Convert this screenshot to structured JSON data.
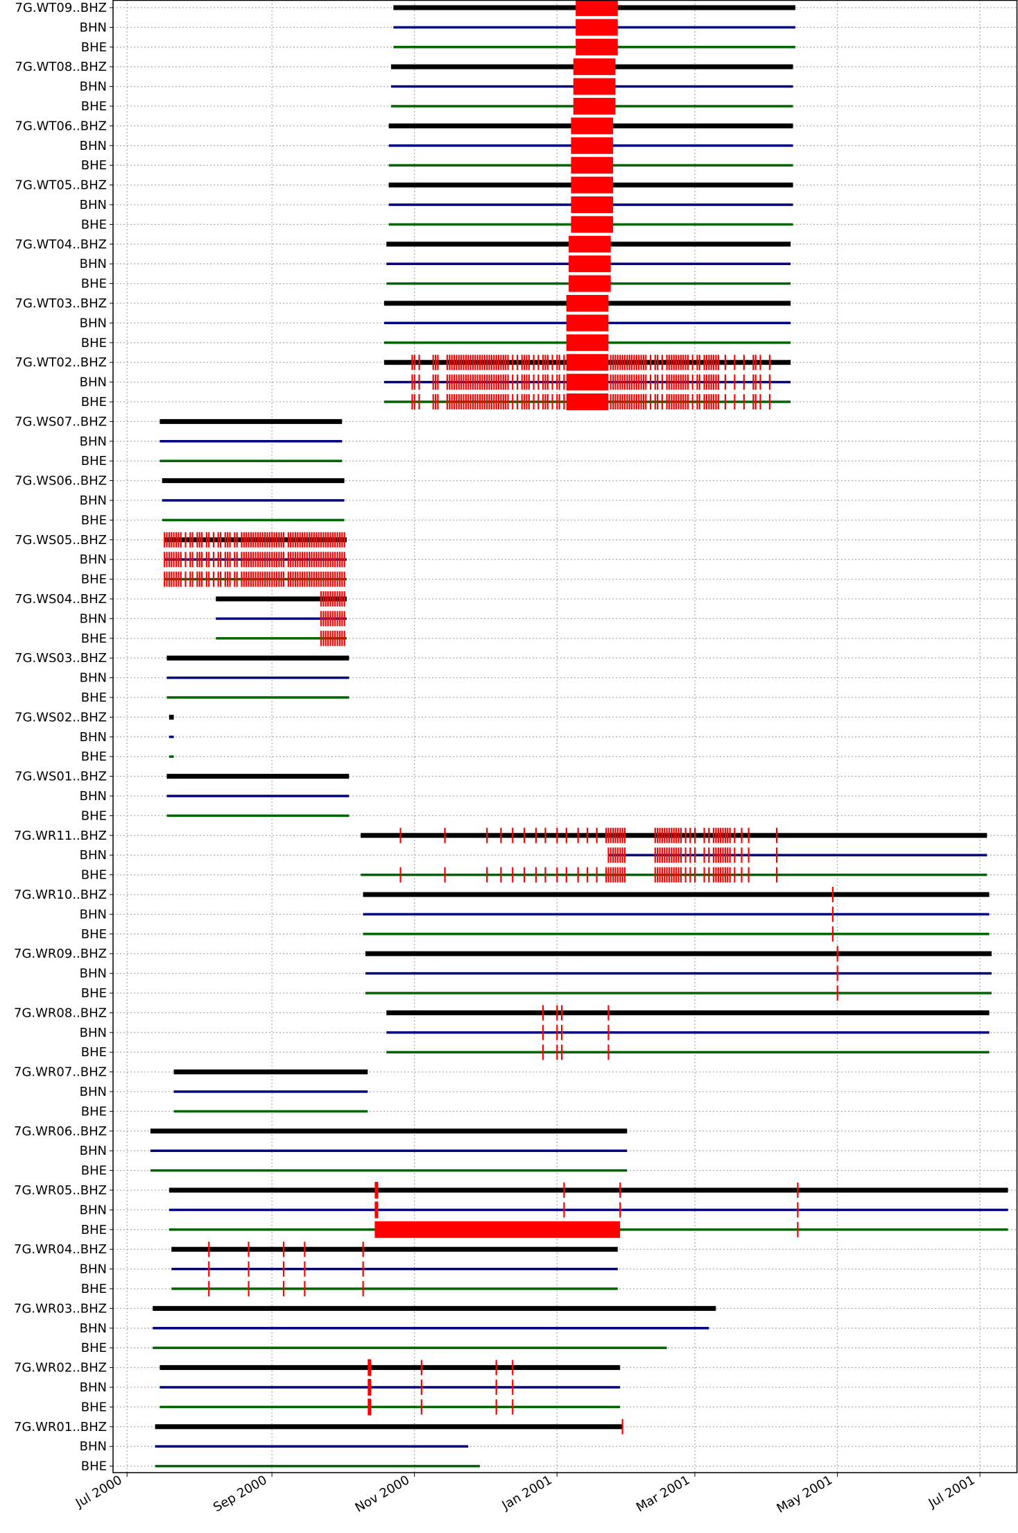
{
  "chart_data": {
    "type": "timeline",
    "title": "",
    "xlabel": "",
    "ylabel": "",
    "grid": true,
    "x_axis": {
      "range": [
        "2000-06-25",
        "2001-07-17"
      ],
      "ticks": [
        {
          "date": "2000-07-01",
          "label": "Jul 2000"
        },
        {
          "date": "2000-09-01",
          "label": "Sep 2000"
        },
        {
          "date": "2000-11-01",
          "label": "Nov 2000"
        },
        {
          "date": "2001-01-01",
          "label": "Jan 2001"
        },
        {
          "date": "2001-03-01",
          "label": "Mar 2001"
        },
        {
          "date": "2001-05-01",
          "label": "May 2001"
        },
        {
          "date": "2001-07-01",
          "label": "Jul 2001"
        }
      ]
    },
    "channel_colors": {
      "BHZ": "#000000",
      "BHN": "#00007f",
      "BHE": "#006400"
    },
    "gap_color": "#ff0000",
    "stations": [
      {
        "label": "7G.WT09..BHZ",
        "channels": [
          "BHZ",
          "BHN",
          "BHE"
        ],
        "start": "2000-10-23",
        "end": "2001-04-13",
        "gaps": [
          {
            "s": "2001-01-09",
            "e": "2001-01-27"
          }
        ]
      },
      {
        "label": "7G.WT08..BHZ",
        "channels": [
          "BHZ",
          "BHN",
          "BHE"
        ],
        "start": "2000-10-22",
        "end": "2001-04-12",
        "gaps": [
          {
            "s": "2001-01-08",
            "e": "2001-01-26"
          }
        ]
      },
      {
        "label": "7G.WT06..BHZ",
        "channels": [
          "BHZ",
          "BHN",
          "BHE"
        ],
        "start": "2000-10-21",
        "end": "2001-04-12",
        "gaps": [
          {
            "s": "2001-01-07",
            "e": "2001-01-25"
          }
        ]
      },
      {
        "label": "7G.WT05..BHZ",
        "channels": [
          "BHZ",
          "BHN",
          "BHE"
        ],
        "start": "2000-10-21",
        "end": "2001-04-12",
        "gaps": [
          {
            "s": "2001-01-07",
            "e": "2001-01-25"
          }
        ]
      },
      {
        "label": "7G.WT04..BHZ",
        "channels": [
          "BHZ",
          "BHN",
          "BHE"
        ],
        "start": "2000-10-20",
        "end": "2001-04-11",
        "gaps": [
          {
            "s": "2001-01-06",
            "e": "2001-01-24"
          }
        ]
      },
      {
        "label": "7G.WT03..BHZ",
        "channels": [
          "BHZ",
          "BHN",
          "BHE"
        ],
        "start": "2000-10-19",
        "end": "2001-04-11",
        "gaps": [
          {
            "s": "2001-01-05",
            "e": "2001-01-23"
          }
        ]
      },
      {
        "label": "7G.WT02..BHZ",
        "channels": [
          "BHZ",
          "BHN",
          "BHE"
        ],
        "start": "2000-10-19",
        "end": "2001-04-11",
        "gaps": [
          {
            "s": "2001-01-05",
            "e": "2001-01-23"
          }
        ],
        "ticks": [
          "2000-10-31",
          "2000-11-01",
          "2000-11-03",
          "2000-11-09",
          "2000-11-10",
          "2000-11-11",
          "2000-11-15",
          "2000-11-16",
          "2000-11-17",
          "2000-11-18",
          "2000-11-19",
          "2000-11-20",
          "2000-11-21",
          "2000-11-22",
          "2000-11-23",
          "2000-11-24",
          "2000-11-25",
          "2000-11-26",
          "2000-11-27",
          "2000-11-28",
          "2000-11-29",
          "2000-11-30",
          "2000-12-01",
          "2000-12-02",
          "2000-12-03",
          "2000-12-04",
          "2000-12-05",
          "2000-12-06",
          "2000-12-07",
          "2000-12-08",
          "2000-12-09",
          "2000-12-10",
          "2000-12-11",
          "2000-12-13",
          "2000-12-15",
          "2000-12-17",
          "2000-12-18",
          "2000-12-19",
          "2000-12-20",
          "2000-12-22",
          "2000-12-24",
          "2000-12-26",
          "2000-12-27",
          "2000-12-28",
          "2000-12-30",
          "2001-01-01",
          "2001-01-02",
          "2001-01-04",
          "2001-01-24",
          "2001-01-25",
          "2001-01-26",
          "2001-01-27",
          "2001-01-28",
          "2001-01-29",
          "2001-01-30",
          "2001-01-31",
          "2001-02-01",
          "2001-02-02",
          "2001-02-03",
          "2001-02-04",
          "2001-02-05",
          "2001-02-06",
          "2001-02-07",
          "2001-02-08",
          "2001-02-10",
          "2001-02-12",
          "2001-02-13",
          "2001-02-15",
          "2001-02-17",
          "2001-02-18",
          "2001-02-19",
          "2001-02-20",
          "2001-02-21",
          "2001-02-22",
          "2001-02-23",
          "2001-02-24",
          "2001-02-25",
          "2001-02-26",
          "2001-02-28",
          "2001-03-02",
          "2001-03-03",
          "2001-03-05",
          "2001-03-06",
          "2001-03-07",
          "2001-03-08",
          "2001-03-09",
          "2001-03-10",
          "2001-03-11",
          "2001-03-14",
          "2001-03-18",
          "2001-03-22",
          "2001-03-26",
          "2001-03-27",
          "2001-03-29",
          "2001-04-02"
        ]
      },
      {
        "label": "7G.WS07..BHZ",
        "channels": [
          "BHZ",
          "BHN",
          "BHE"
        ],
        "start": "2000-07-15",
        "end": "2000-10-01"
      },
      {
        "label": "7G.WS06..BHZ",
        "channels": [
          "BHZ",
          "BHN",
          "BHE"
        ],
        "start": "2000-07-16",
        "end": "2000-10-02"
      },
      {
        "label": "7G.WS05..BHZ",
        "channels": [
          "BHZ",
          "BHN",
          "BHE"
        ],
        "start": "2000-07-17",
        "end": "2000-10-03",
        "ticks": [
          "2000-07-17",
          "2000-07-18",
          "2000-07-19",
          "2000-07-20",
          "2000-07-21",
          "2000-07-22",
          "2000-07-23",
          "2000-07-24",
          "2000-07-26",
          "2000-07-28",
          "2000-07-29",
          "2000-07-31",
          "2000-08-01",
          "2000-08-02",
          "2000-08-04",
          "2000-08-05",
          "2000-08-07",
          "2000-08-09",
          "2000-08-10",
          "2000-08-12",
          "2000-08-13",
          "2000-08-14",
          "2000-08-16",
          "2000-08-17",
          "2000-08-19",
          "2000-08-20",
          "2000-08-21",
          "2000-08-22",
          "2000-08-23",
          "2000-08-24",
          "2000-08-25",
          "2000-08-26",
          "2000-08-27",
          "2000-08-28",
          "2000-08-29",
          "2000-08-30",
          "2000-08-31",
          "2000-09-01",
          "2000-09-02",
          "2000-09-03",
          "2000-09-04",
          "2000-09-05",
          "2000-09-06",
          "2000-09-08",
          "2000-09-09",
          "2000-09-10",
          "2000-09-11",
          "2000-09-12",
          "2000-09-13",
          "2000-09-14",
          "2000-09-15",
          "2000-09-16",
          "2000-09-17",
          "2000-09-18",
          "2000-09-19",
          "2000-09-20",
          "2000-09-21",
          "2000-09-22",
          "2000-09-23",
          "2000-09-24",
          "2000-09-25",
          "2000-09-26",
          "2000-09-27",
          "2000-09-28",
          "2000-09-29",
          "2000-09-30",
          "2000-10-01",
          "2000-10-02"
        ]
      },
      {
        "label": "7G.WS04..BHZ",
        "channels": [
          "BHZ",
          "BHN",
          "BHE"
        ],
        "start": "2000-08-08",
        "end": "2000-10-03",
        "ticks": [
          "2000-09-22",
          "2000-09-23",
          "2000-09-24",
          "2000-09-25",
          "2000-09-26",
          "2000-09-27",
          "2000-09-28",
          "2000-09-29",
          "2000-09-30",
          "2000-10-01",
          "2000-10-02"
        ]
      },
      {
        "label": "7G.WS03..BHZ",
        "channels": [
          "BHZ",
          "BHN",
          "BHE"
        ],
        "start": "2000-07-18",
        "end": "2000-10-04"
      },
      {
        "label": "7G.WS02..BHZ",
        "channels": [
          "BHZ",
          "BHN",
          "BHE"
        ],
        "start": "2000-07-19",
        "end": "2000-07-21"
      },
      {
        "label": "7G.WS01..BHZ",
        "channels": [
          "BHZ",
          "BHN",
          "BHE"
        ],
        "start": "2000-07-18",
        "end": "2000-10-04"
      },
      {
        "label": "7G.WR11..BHZ",
        "channels": [
          "BHZ",
          "BHN",
          "BHE"
        ],
        "spans": [
          {
            "s": "2000-10-09",
            "e": "2001-07-04"
          },
          {
            "s": "2001-01-23",
            "e": "2001-07-04"
          },
          {
            "s": "2000-10-09",
            "e": "2001-07-04"
          }
        ],
        "ticks_by_channel": [
          [
            "2000-10-26",
            "2000-11-14",
            "2000-12-02",
            "2000-12-08",
            "2000-12-13",
            "2000-12-18",
            "2000-12-23",
            "2000-12-27",
            "2001-01-01",
            "2001-01-05",
            "2001-01-10",
            "2001-01-14",
            "2001-01-18",
            "2001-01-22",
            "2001-01-23",
            "2001-01-24",
            "2001-01-25",
            "2001-01-26",
            "2001-01-27",
            "2001-01-28",
            "2001-01-29",
            "2001-01-30",
            "2001-02-12",
            "2001-02-13",
            "2001-02-14",
            "2001-02-15",
            "2001-02-16",
            "2001-02-17",
            "2001-02-18",
            "2001-02-19",
            "2001-02-20",
            "2001-02-21",
            "2001-02-22",
            "2001-02-23",
            "2001-02-25",
            "2001-02-27",
            "2001-03-01",
            "2001-03-05",
            "2001-03-07",
            "2001-03-09",
            "2001-03-10",
            "2001-03-11",
            "2001-03-12",
            "2001-03-13",
            "2001-03-14",
            "2001-03-15",
            "2001-03-16",
            "2001-03-18",
            "2001-03-21",
            "2001-03-24",
            "2001-04-05"
          ],
          [
            "2001-01-23",
            "2001-01-24",
            "2001-01-25",
            "2001-01-26",
            "2001-01-27",
            "2001-01-28",
            "2001-01-29",
            "2001-01-30",
            "2001-02-12",
            "2001-02-13",
            "2001-02-14",
            "2001-02-15",
            "2001-02-16",
            "2001-02-17",
            "2001-02-18",
            "2001-02-19",
            "2001-02-20",
            "2001-02-21",
            "2001-02-22",
            "2001-02-23",
            "2001-02-25",
            "2001-02-27",
            "2001-03-01",
            "2001-03-05",
            "2001-03-07",
            "2001-03-09",
            "2001-03-10",
            "2001-03-11",
            "2001-03-12",
            "2001-03-13",
            "2001-03-14",
            "2001-03-15",
            "2001-03-16",
            "2001-03-18",
            "2001-03-21",
            "2001-03-24",
            "2001-04-05"
          ],
          [
            "2000-10-26",
            "2000-11-14",
            "2000-12-02",
            "2000-12-08",
            "2000-12-13",
            "2000-12-18",
            "2000-12-23",
            "2000-12-27",
            "2001-01-01",
            "2001-01-05",
            "2001-01-10",
            "2001-01-14",
            "2001-01-18",
            "2001-01-22",
            "2001-01-23",
            "2001-01-24",
            "2001-01-25",
            "2001-01-26",
            "2001-01-27",
            "2001-01-28",
            "2001-01-29",
            "2001-01-30",
            "2001-02-12",
            "2001-02-13",
            "2001-02-14",
            "2001-02-15",
            "2001-02-16",
            "2001-02-17",
            "2001-02-18",
            "2001-02-19",
            "2001-02-20",
            "2001-02-21",
            "2001-02-22",
            "2001-02-23",
            "2001-02-25",
            "2001-02-27",
            "2001-03-01",
            "2001-03-05",
            "2001-03-07",
            "2001-03-09",
            "2001-03-10",
            "2001-03-11",
            "2001-03-12",
            "2001-03-13",
            "2001-03-14",
            "2001-03-15",
            "2001-03-16",
            "2001-03-18",
            "2001-03-21",
            "2001-03-24",
            "2001-04-05"
          ]
        ]
      },
      {
        "label": "7G.WR10..BHZ",
        "channels": [
          "BHZ",
          "BHN",
          "BHE"
        ],
        "start": "2000-10-10",
        "end": "2001-07-05",
        "ticks": [
          "2001-04-29"
        ]
      },
      {
        "label": "7G.WR09..BHZ",
        "channels": [
          "BHZ",
          "BHN",
          "BHE"
        ],
        "start": "2000-10-11",
        "end": "2001-07-06",
        "ticks": [
          "2001-05-01"
        ]
      },
      {
        "label": "7G.WR08..BHZ",
        "channels": [
          "BHZ",
          "BHN",
          "BHE"
        ],
        "start": "2000-10-20",
        "end": "2001-07-05",
        "ticks": [
          "2000-12-26",
          "2001-01-01",
          "2001-01-03",
          "2001-01-23"
        ]
      },
      {
        "label": "7G.WR07..BHZ",
        "channels": [
          "BHZ",
          "BHN",
          "BHE"
        ],
        "start": "2000-07-21",
        "end": "2000-10-12"
      },
      {
        "label": "7G.WR06..BHZ",
        "channels": [
          "BHZ",
          "BHN",
          "BHE"
        ],
        "start": "2000-07-11",
        "end": "2001-01-31"
      },
      {
        "label": "7G.WR05..BHZ",
        "channels": [
          "BHZ",
          "BHN",
          "BHE"
        ],
        "start": "2000-07-19",
        "end": "2001-07-13",
        "gaps_by_channel": [
          [
            {
              "s": "2000-10-15",
              "e": "2000-10-16"
            }
          ],
          [
            {
              "s": "2000-10-15",
              "e": "2000-10-16"
            }
          ],
          [
            {
              "s": "2000-10-15",
              "e": "2001-01-28"
            }
          ]
        ],
        "ticks_by_channel": [
          [
            "2001-01-04",
            "2001-01-28",
            "2001-04-14"
          ],
          [
            "2001-01-04",
            "2001-01-28",
            "2001-04-14"
          ],
          [
            "2001-04-14"
          ]
        ]
      },
      {
        "label": "7G.WR04..BHZ",
        "channels": [
          "BHZ",
          "BHN",
          "BHE"
        ],
        "start": "2000-07-20",
        "end": "2001-01-27",
        "ticks": [
          "2000-08-05",
          "2000-08-22",
          "2000-09-06",
          "2000-09-15",
          "2000-10-10"
        ]
      },
      {
        "label": "7G.WR03..BHZ",
        "channels": [
          "BHZ",
          "BHN",
          "BHE"
        ],
        "spans": [
          {
            "s": "2000-07-12",
            "e": "2001-03-10"
          },
          {
            "s": "2000-07-12",
            "e": "2001-03-07"
          },
          {
            "s": "2000-07-12",
            "e": "2001-02-17"
          }
        ]
      },
      {
        "label": "7G.WR02..BHZ",
        "channels": [
          "BHZ",
          "BHN",
          "BHE"
        ],
        "start": "2000-07-15",
        "end": "2001-01-28",
        "gaps": [
          {
            "s": "2000-10-12",
            "e": "2000-10-13"
          }
        ],
        "ticks": [
          "2000-11-04",
          "2000-12-06",
          "2000-12-13"
        ]
      },
      {
        "label": "7G.WR01..BHZ",
        "channels": [
          "BHZ",
          "BHN",
          "BHE"
        ],
        "spans": [
          {
            "s": "2000-07-13",
            "e": "2001-01-29"
          },
          {
            "s": "2000-07-13",
            "e": "2000-11-24"
          },
          {
            "s": "2000-07-13",
            "e": "2000-11-29"
          }
        ],
        "ticks_by_channel": [
          [
            "2001-01-29"
          ],
          [],
          []
        ]
      }
    ]
  }
}
